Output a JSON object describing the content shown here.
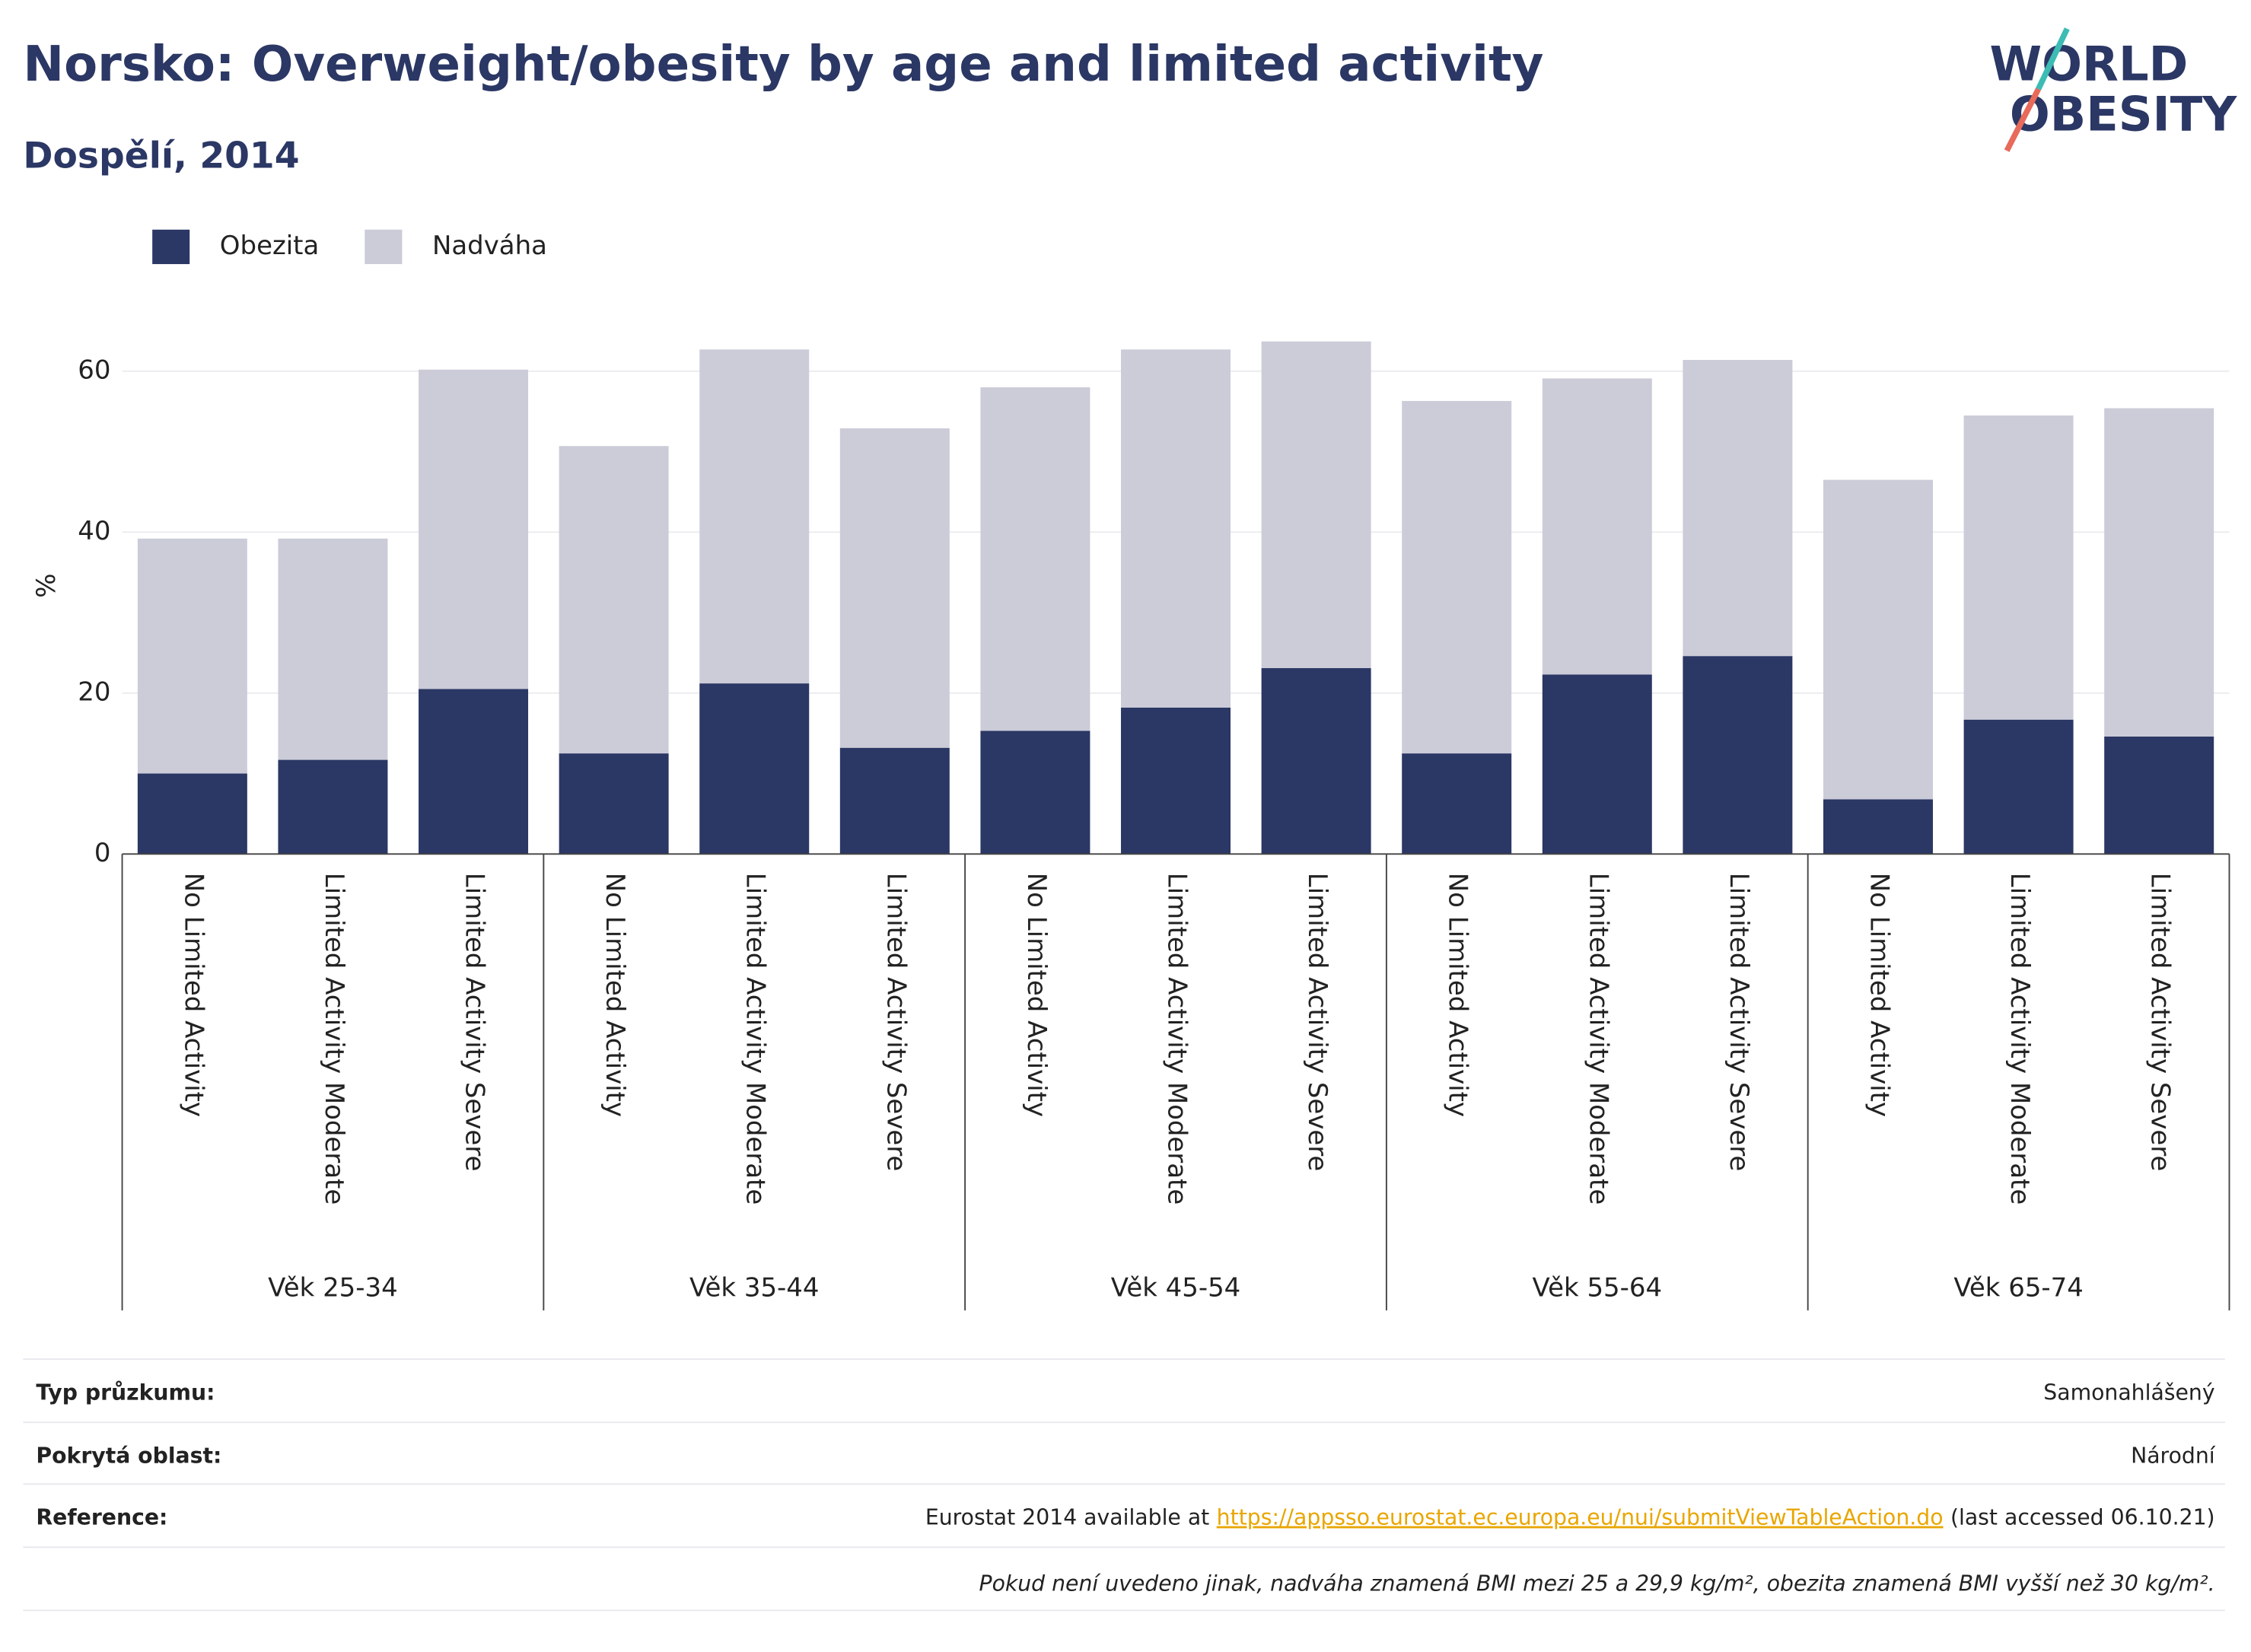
{
  "chart_data": {
    "type": "stacked_bar",
    "title": "Norsko: Overweight/obesity by age and limited activity",
    "subtitle": "Dospělí, 2014",
    "y_label": "%",
    "groups": [
      {
        "name": "Věk 25-34",
        "categories": [
          "No Limited Activity",
          "Limited Activity Moderate",
          "Limited Activity Severe"
        ]
      },
      {
        "name": "Věk 35-44",
        "categories": [
          "No Limited Activity",
          "Limited Activity Moderate",
          "Limited Activity Severe"
        ]
      },
      {
        "name": "Věk 45-54",
        "categories": [
          "No Limited Activity",
          "Limited Activity Moderate",
          "Limited Activity Severe"
        ]
      },
      {
        "name": "Věk 55-64",
        "categories": [
          "No Limited Activity",
          "Limited Activity Moderate",
          "Limited Activity Severe"
        ]
      },
      {
        "name": "Věk 65-74",
        "categories": [
          "No Limited Activity",
          "Limited Activity Moderate",
          "Limited Activity Severe"
        ]
      }
    ],
    "series": [
      {
        "name": "Obezita",
        "color": "#2b3764",
        "values": [
          10.0,
          11.7,
          20.5,
          12.5,
          21.2,
          13.2,
          15.3,
          18.2,
          23.1,
          12.5,
          22.3,
          24.6,
          6.8,
          16.7,
          14.6
        ]
      },
      {
        "name": "Nadváha",
        "color": "#cbccd8",
        "values": [
          29.2,
          27.5,
          39.7,
          38.2,
          41.5,
          39.7,
          42.7,
          44.5,
          40.6,
          43.8,
          36.8,
          36.8,
          39.7,
          37.8,
          40.8
        ]
      }
    ],
    "ylim": [
      0,
      66
    ],
    "yticks": [
      0,
      20,
      40,
      60
    ],
    "grid": true,
    "legend": "top-left"
  },
  "logo": {
    "line1": "WORLD",
    "line2": "OBESITY"
  },
  "footer": {
    "rows": [
      {
        "label": "Typ průzkumu:",
        "value": "Samonahlášený"
      },
      {
        "label": "Pokrytá oblast:",
        "value": "Národní"
      }
    ],
    "reference": {
      "label": "Reference:",
      "prefix": "Eurostat 2014 available at",
      "link": "https://appsso.eurostat.ec.europa.eu/nui/submitViewTableAction.do",
      "suffix": "(last accessed 06.10.21)"
    },
    "note": "Pokud není uvedeno jinak, nadváha znamená BMI mezi 25 a 29,9 kg/m², obezita znamená BMI vyšší než 30 kg/m²."
  }
}
